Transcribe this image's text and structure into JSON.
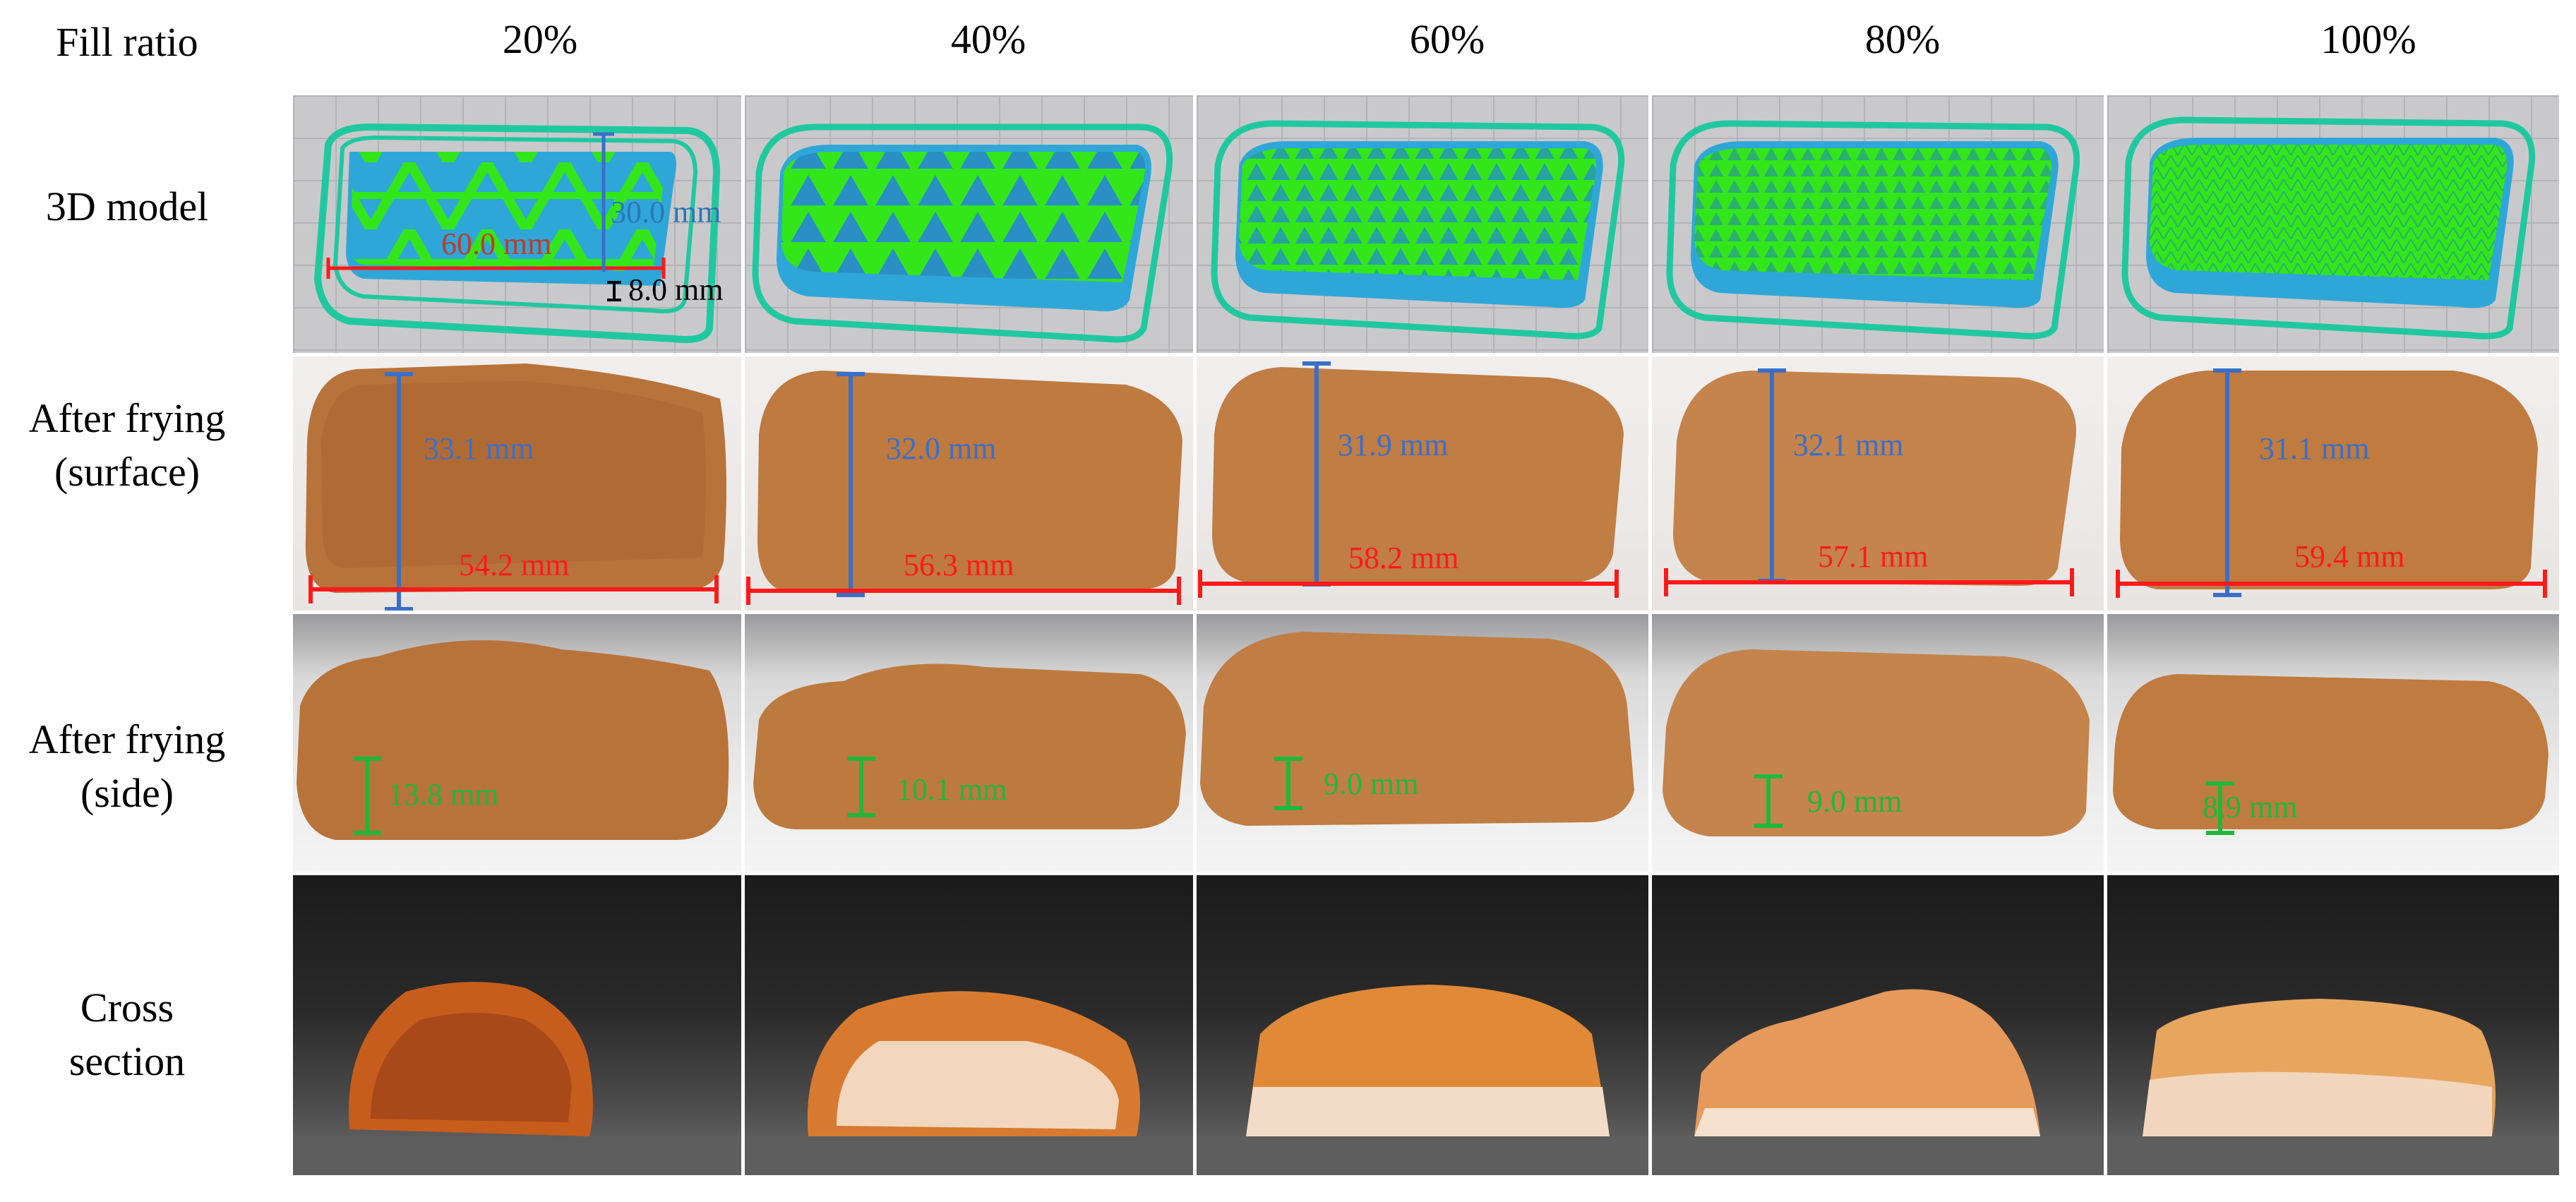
{
  "header": {
    "fill_ratio": "Fill ratio"
  },
  "rows": {
    "model": "3D model",
    "surface_1": "After frying",
    "surface_2": "(surface)",
    "side_1": "After frying",
    "side_2": "(side)",
    "cross_1": "Cross",
    "cross_2": "section"
  },
  "columns": [
    "20%",
    "40%",
    "60%",
    "80%",
    "100%"
  ],
  "model_annotations": {
    "length": "60.0 mm",
    "width": "30.0 mm",
    "height": "8.0 mm"
  },
  "surface_measurements": [
    {
      "height": "33.1 mm",
      "width": "54.2 mm"
    },
    {
      "height": "32.0 mm",
      "width": "56.3 mm"
    },
    {
      "height": "31.9 mm",
      "width": "58.2 mm"
    },
    {
      "height": "32.1 mm",
      "width": "57.1 mm"
    },
    {
      "height": "31.1 mm",
      "width": "59.4 mm"
    }
  ],
  "side_measurements": [
    "13.8 mm",
    "10.1 mm",
    "9.0 mm",
    "9.0 mm",
    "8.9 mm"
  ],
  "colors": {
    "infill": "#33e61a",
    "shell": "#2ea7d8",
    "outline": "#20c8a0",
    "nugget": "#b8733a",
    "width_line": "#ff1a1a",
    "height_line": "#3a6fc8",
    "thickness_line": "#1fb83a",
    "model_text_red": "#c0392b",
    "model_text_blue": "#2e75b6"
  }
}
